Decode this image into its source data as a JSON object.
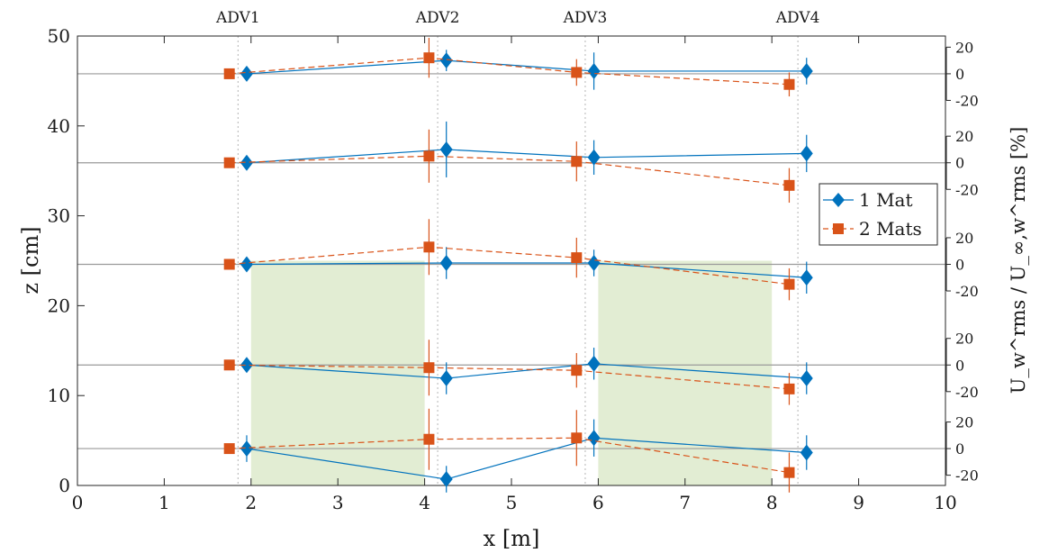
{
  "chart_data": {
    "type": "line",
    "xlabel": "x [m]",
    "ylabel": "z [cm]",
    "y2label": "U_w^rms / U_∞,w^rms [%]",
    "xlim": [
      0,
      10
    ],
    "ylim": [
      0,
      50
    ],
    "xticks": [
      "0",
      "1",
      "2",
      "3",
      "4",
      "5",
      "6",
      "7",
      "8",
      "9",
      "10"
    ],
    "yticks": [
      "0",
      "10",
      "20",
      "30",
      "40",
      "50"
    ],
    "offset_ticks": [
      "20",
      "0",
      "-20"
    ],
    "adv_stations": [
      {
        "label": "ADV1",
        "x": 1.85
      },
      {
        "label": "ADV2",
        "x": 4.15
      },
      {
        "label": "ADV3",
        "x": 5.85
      },
      {
        "label": "ADV4",
        "x": 8.3
      }
    ],
    "mat_regions": [
      {
        "x0": 2.0,
        "x1": 4.0,
        "z_top": 25
      },
      {
        "x0": 6.0,
        "x1": 8.0,
        "z_top": 25
      }
    ],
    "levels": [
      4.1,
      13.4,
      24.6,
      35.9,
      45.8
    ],
    "series": [
      {
        "name": "1 Mat",
        "color": "#0072bd",
        "marker": "diamond",
        "line_style": "solid",
        "x": [
          1.95,
          4.25,
          5.95,
          8.4
        ],
        "values": [
          [
            0,
            -23,
            8,
            -3
          ],
          [
            0,
            -10,
            1,
            -10
          ],
          [
            0,
            1,
            1,
            -10
          ],
          [
            0,
            10,
            4,
            7
          ],
          [
            0,
            10,
            2,
            2
          ]
        ],
        "errors": [
          [
            10,
            10,
            14,
            13
          ],
          [
            0,
            12,
            12,
            12
          ],
          [
            0,
            12,
            10,
            12
          ],
          [
            0,
            21,
            13,
            14
          ],
          [
            0,
            8,
            14,
            10
          ]
        ]
      },
      {
        "name": "2 Mats",
        "color": "#d95319",
        "marker": "square",
        "line_style": "dashed",
        "x": [
          1.75,
          4.05,
          5.75,
          8.2
        ],
        "values": [
          [
            0,
            7,
            8,
            -18
          ],
          [
            0,
            -2,
            -4,
            -18
          ],
          [
            0,
            13,
            5,
            -15
          ],
          [
            0,
            5,
            1,
            -17
          ],
          [
            0,
            12,
            1,
            -8
          ]
        ],
        "errors": [
          [
            0,
            23,
            21,
            15
          ],
          [
            0,
            21,
            13,
            12
          ],
          [
            0,
            21,
            15,
            12
          ],
          [
            0,
            20,
            15,
            13
          ],
          [
            0,
            15,
            10,
            9
          ]
        ]
      }
    ],
    "legend": {
      "position": "right",
      "entries": [
        "1 Mat",
        "2 Mats"
      ]
    }
  }
}
